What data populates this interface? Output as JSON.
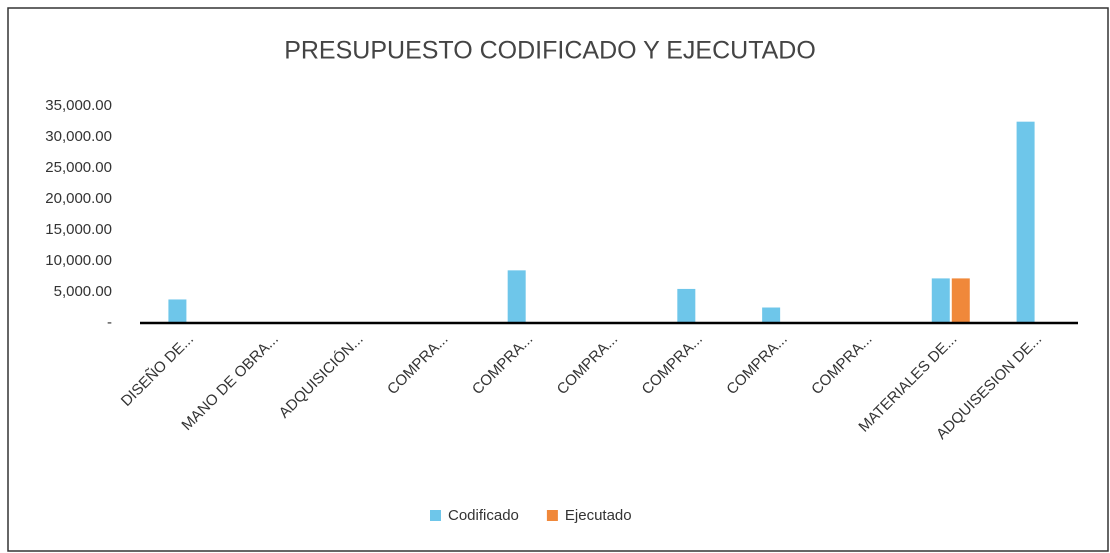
{
  "chart_data": {
    "type": "bar",
    "title": "PRESUPUESTO CODIFICADO Y EJECUTADO",
    "categories": [
      "DISEÑO DE...",
      "MANO DE OBRA...",
      "ADQUISICIÓN...",
      "COMPRA...",
      "COMPRA...",
      "COMPRA...",
      "COMPRA...",
      "COMPRA...",
      "COMPRA...",
      "MATERIALES DE...",
      "ADQUISESION DE..."
    ],
    "series": [
      {
        "name": "Codificado",
        "color": "#6ec6ea",
        "values": [
          3800,
          0,
          0,
          0,
          8500,
          0,
          5500,
          2500,
          0,
          7200,
          32500
        ]
      },
      {
        "name": "Ejecutado",
        "color": "#f0883a",
        "values": [
          0,
          0,
          0,
          0,
          0,
          0,
          0,
          0,
          0,
          7200,
          0
        ]
      }
    ],
    "ylim": [
      0,
      36000
    ],
    "yticks": [
      {
        "value": 0,
        "label": "-"
      },
      {
        "value": 5000,
        "label": "5,000.00"
      },
      {
        "value": 10000,
        "label": "10,000.00"
      },
      {
        "value": 15000,
        "label": "15,000.00"
      },
      {
        "value": 20000,
        "label": "20,000.00"
      },
      {
        "value": 25000,
        "label": "25,000.00"
      },
      {
        "value": 30000,
        "label": "30,000.00"
      },
      {
        "value": 35000,
        "label": "35,000.00"
      }
    ],
    "grid": false,
    "legend": "bottom"
  }
}
